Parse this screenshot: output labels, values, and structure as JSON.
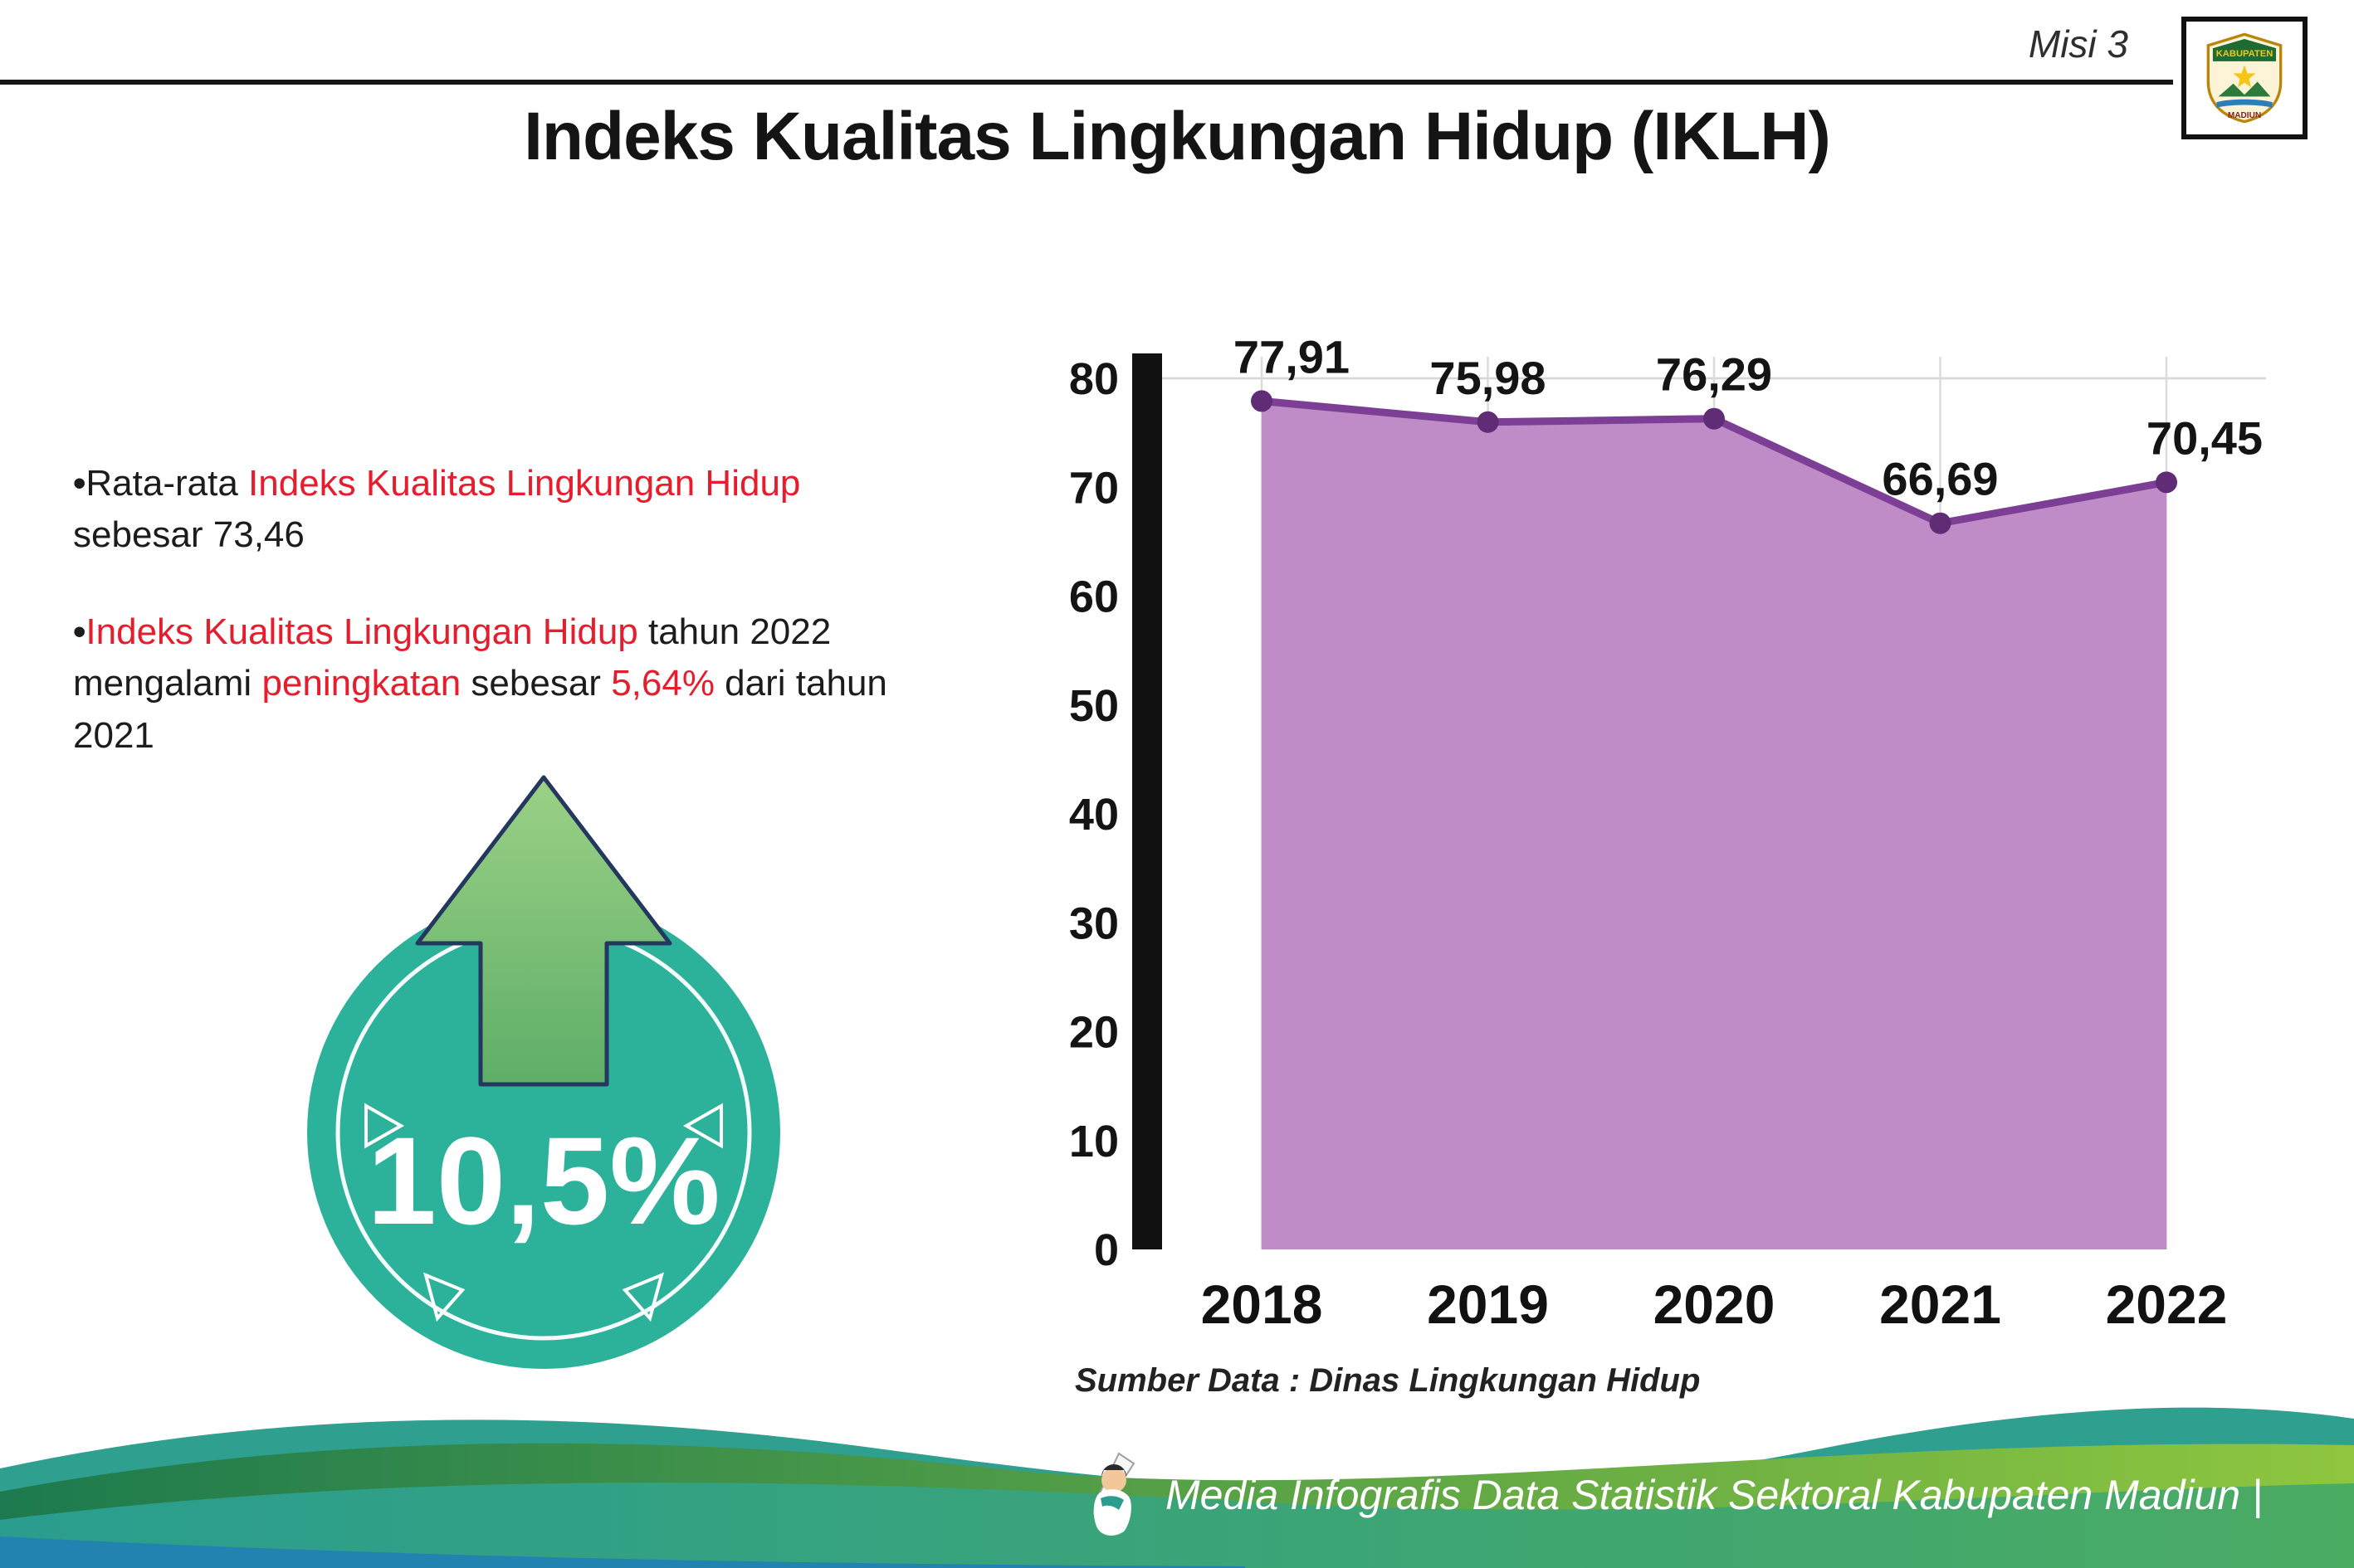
{
  "header": {
    "misi_label": "Misi 3",
    "title": "Indeks Kualitas Lingkungan Hidup (IKLH)",
    "logo_top_text": "KABUPATEN",
    "logo_bottom_text": "MADIUN"
  },
  "bullets": {
    "marker": "•",
    "b1": {
      "s1": "Rata-rata ",
      "s2": "Indeks Kualitas Lingkungan Hidup",
      "s3": " sebesar 73,46"
    },
    "b2": {
      "s1": "Indeks Kualitas Lingkungan Hidup",
      "s2": " tahun 2022 mengalami ",
      "s3": "peningkatan",
      "s4": " sebesar ",
      "s5": "5,64%",
      "s6": " dari tahun 2021"
    }
  },
  "badge": {
    "value": "10,5%",
    "circle_color": "#2cb29a",
    "arrow_color": "#8cc87b"
  },
  "chart_data": {
    "type": "area",
    "title": "",
    "categories": [
      "2018",
      "2019",
      "2020",
      "2021",
      "2022"
    ],
    "values": [
      77.91,
      75.98,
      76.29,
      66.69,
      70.45
    ],
    "value_labels": [
      "77,91",
      "75,98",
      "76,29",
      "66,69",
      "70,45"
    ],
    "xlabel": "",
    "ylabel": "",
    "ylim": [
      0,
      80
    ],
    "yticks": [
      0,
      10,
      20,
      30,
      40,
      50,
      60,
      70,
      80
    ],
    "grid": "light vertical gridline per year, light horizontal at top",
    "legend": "none",
    "fill_color": "#bf8cc7",
    "line_color": "#7c3f95",
    "point_color": "#602c75",
    "source": "Sumber Data : Dinas Lingkungan Hidup"
  },
  "footer": {
    "text": "Media Infografis Data Statistik Sektoral Kabupaten Madiun |"
  },
  "colors": {
    "accent_red": "#e51d2c",
    "badge_teal": "#2cb29a",
    "arrow_green": "#8cc87b",
    "wave_teal": "#2f9f90",
    "wave_green": "#8ec63f"
  }
}
